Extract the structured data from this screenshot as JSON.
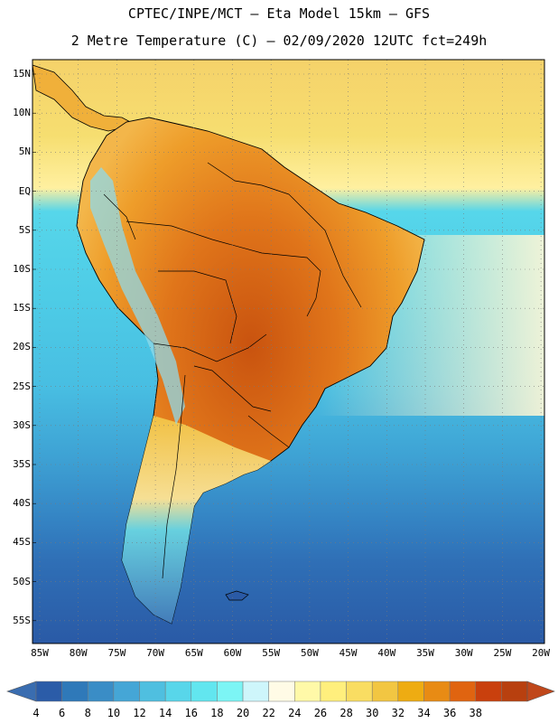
{
  "header": {
    "line1": "CPTEC/INPE/MCT —  Eta Model 15km — GFS",
    "line2": "2 Metre Temperature (C) — 02/09/2020 12UTC fct=249h"
  },
  "map": {
    "region": "South America",
    "lat_labels": [
      "15N",
      "10N",
      "5N",
      "EQ",
      "5S",
      "10S",
      "15S",
      "20S",
      "25S",
      "30S",
      "35S",
      "40S",
      "45S",
      "50S",
      "55S"
    ],
    "lon_labels": [
      "85W",
      "80W",
      "75W",
      "70W",
      "65W",
      "60W",
      "55W",
      "50W",
      "45W",
      "40W",
      "35W",
      "30W",
      "25W",
      "20W"
    ]
  },
  "colorbar": {
    "labels": [
      "4",
      "6",
      "8",
      "10",
      "12",
      "14",
      "16",
      "18",
      "20",
      "22",
      "24",
      "26",
      "28",
      "30",
      "32",
      "34",
      "36",
      "38"
    ],
    "colors": [
      "#2b5ca8",
      "#2f79b9",
      "#3a8dc6",
      "#45a6d6",
      "#4fbfe0",
      "#58d6ea",
      "#62e6ef",
      "#7cf5f5",
      "#cef6fb",
      "#fffbe6",
      "#fff9a8",
      "#ffef7d",
      "#f9dd62",
      "#f2c642",
      "#eeac12",
      "#e88b14",
      "#e06410",
      "#c9400d",
      "#b8400f"
    ],
    "low_color": "#3a6db0",
    "high_color": "#c0471a"
  }
}
